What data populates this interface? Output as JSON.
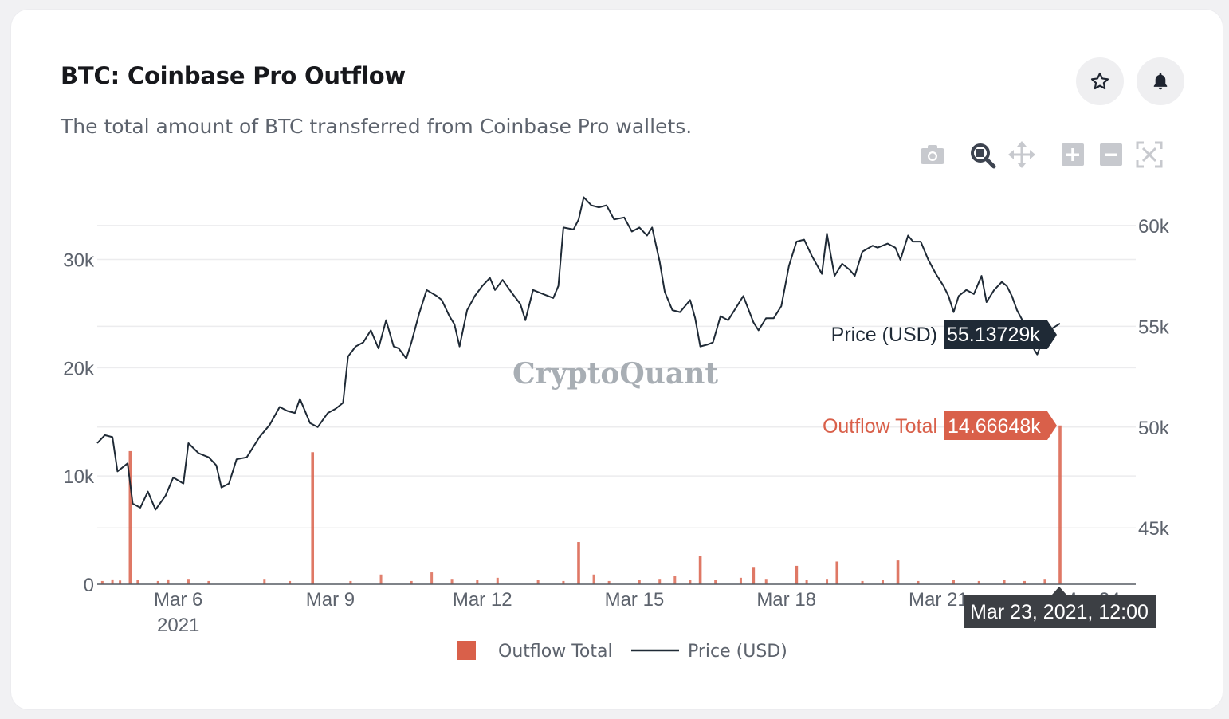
{
  "header": {
    "title": "BTC: Coinbase Pro Outflow",
    "subtitle": "The total amount of BTC transferred from Coinbase Pro wallets."
  },
  "actions": {
    "favorite_icon": "star-icon",
    "alert_icon": "bell-icon"
  },
  "toolbar": {
    "icons": [
      "camera-icon",
      "zoom-icon",
      "pan-icon",
      "zoom-in-icon",
      "zoom-out-icon",
      "autoscale-icon"
    ]
  },
  "colors": {
    "outflow": "#d9604a",
    "price": "#1f2a36",
    "label_price_bg": "#1f2a36",
    "label_outflow_bg": "#d9604a"
  },
  "watermark": "CryptoQuant",
  "hover": {
    "price_label": "Price (USD)",
    "price_value": "55.13729k",
    "outflow_label": "Outflow Total",
    "outflow_value": "14.66648k",
    "date_value": "Mar 23, 2021, 12:00"
  },
  "chart_data": {
    "type": "bar",
    "title": "BTC: Coinbase Pro Outflow",
    "x_ticks": [
      {
        "t": 5.7,
        "label": "Mar 6",
        "sub": "2021"
      },
      {
        "t": 8.7,
        "label": "Mar 9",
        "sub": ""
      },
      {
        "t": 11.7,
        "label": "Mar 12",
        "sub": ""
      },
      {
        "t": 14.7,
        "label": "Mar 15",
        "sub": ""
      },
      {
        "t": 17.7,
        "label": "Mar 18",
        "sub": ""
      },
      {
        "t": 20.7,
        "label": "Mar 21",
        "sub": ""
      },
      {
        "t": 23.7,
        "label": "Mar 24",
        "sub": ""
      }
    ],
    "x_range": [
      4.1,
      23.1
    ],
    "y_left": {
      "ticks": [
        0,
        10000,
        20000,
        30000
      ],
      "tick_labels": [
        "0",
        "10k",
        "20k",
        "30k"
      ],
      "range": [
        0,
        33200
      ]
    },
    "y_right": {
      "ticks": [
        45000,
        50000,
        55000,
        60000
      ],
      "tick_labels": [
        "45k",
        "50k",
        "55k",
        "60k"
      ],
      "range": [
        42200,
        61300
      ]
    },
    "grid": true,
    "legend_placement": "bottom-center",
    "series": [
      {
        "name": "Outflow Total",
        "kind": "bar",
        "axis": "left",
        "spikes": [
          {
            "t": 4.75,
            "v": 12300
          },
          {
            "t": 8.35,
            "v": 12200
          },
          {
            "t": 13.6,
            "v": 3900
          },
          {
            "t": 16.0,
            "v": 2600
          },
          {
            "t": 17.05,
            "v": 1600
          },
          {
            "t": 17.9,
            "v": 1700
          },
          {
            "t": 18.7,
            "v": 2100
          },
          {
            "t": 19.9,
            "v": 2200
          },
          {
            "t": 23.1,
            "v": 14666
          }
        ],
        "baseline_bars": [
          {
            "t": 4.2,
            "v": 300
          },
          {
            "t": 4.4,
            "v": 450
          },
          {
            "t": 4.55,
            "v": 350
          },
          {
            "t": 4.9,
            "v": 400
          },
          {
            "t": 5.3,
            "v": 300
          },
          {
            "t": 5.5,
            "v": 450
          },
          {
            "t": 5.9,
            "v": 500
          },
          {
            "t": 6.3,
            "v": 300
          },
          {
            "t": 7.4,
            "v": 500
          },
          {
            "t": 7.9,
            "v": 300
          },
          {
            "t": 9.1,
            "v": 300
          },
          {
            "t": 9.7,
            "v": 900
          },
          {
            "t": 10.3,
            "v": 300
          },
          {
            "t": 10.7,
            "v": 1100
          },
          {
            "t": 11.1,
            "v": 500
          },
          {
            "t": 11.6,
            "v": 400
          },
          {
            "t": 12.0,
            "v": 600
          },
          {
            "t": 12.8,
            "v": 400
          },
          {
            "t": 13.3,
            "v": 300
          },
          {
            "t": 13.9,
            "v": 900
          },
          {
            "t": 14.2,
            "v": 300
          },
          {
            "t": 14.8,
            "v": 400
          },
          {
            "t": 15.2,
            "v": 500
          },
          {
            "t": 15.5,
            "v": 800
          },
          {
            "t": 15.8,
            "v": 400
          },
          {
            "t": 16.3,
            "v": 400
          },
          {
            "t": 16.8,
            "v": 600
          },
          {
            "t": 17.3,
            "v": 500
          },
          {
            "t": 18.1,
            "v": 400
          },
          {
            "t": 18.5,
            "v": 500
          },
          {
            "t": 19.2,
            "v": 300
          },
          {
            "t": 19.6,
            "v": 400
          },
          {
            "t": 20.3,
            "v": 300
          },
          {
            "t": 21.0,
            "v": 400
          },
          {
            "t": 21.5,
            "v": 300
          },
          {
            "t": 22.0,
            "v": 400
          },
          {
            "t": 22.4,
            "v": 300
          },
          {
            "t": 22.8,
            "v": 500
          }
        ]
      },
      {
        "name": "Price (USD)",
        "kind": "line",
        "axis": "right",
        "points": [
          [
            4.1,
            49200
          ],
          [
            4.25,
            49600
          ],
          [
            4.4,
            49500
          ],
          [
            4.5,
            47800
          ],
          [
            4.7,
            48200
          ],
          [
            4.8,
            46200
          ],
          [
            4.95,
            46000
          ],
          [
            5.1,
            46800
          ],
          [
            5.25,
            45900
          ],
          [
            5.45,
            46600
          ],
          [
            5.6,
            47500
          ],
          [
            5.8,
            47200
          ],
          [
            5.9,
            49200
          ],
          [
            6.1,
            48700
          ],
          [
            6.3,
            48500
          ],
          [
            6.45,
            48100
          ],
          [
            6.55,
            47000
          ],
          [
            6.7,
            47200
          ],
          [
            6.85,
            48400
          ],
          [
            7.05,
            48500
          ],
          [
            7.3,
            49500
          ],
          [
            7.5,
            50100
          ],
          [
            7.7,
            51000
          ],
          [
            7.85,
            50800
          ],
          [
            8.0,
            50700
          ],
          [
            8.1,
            51400
          ],
          [
            8.3,
            50200
          ],
          [
            8.45,
            50000
          ],
          [
            8.65,
            50700
          ],
          [
            8.8,
            50900
          ],
          [
            8.95,
            51200
          ],
          [
            9.05,
            53500
          ],
          [
            9.2,
            54000
          ],
          [
            9.35,
            54200
          ],
          [
            9.5,
            54800
          ],
          [
            9.65,
            53900
          ],
          [
            9.8,
            55300
          ],
          [
            9.95,
            54000
          ],
          [
            10.05,
            53900
          ],
          [
            10.2,
            53400
          ],
          [
            10.3,
            54200
          ],
          [
            10.45,
            55600
          ],
          [
            10.6,
            56800
          ],
          [
            10.8,
            56500
          ],
          [
            10.9,
            56300
          ],
          [
            11.05,
            55500
          ],
          [
            11.15,
            55100
          ],
          [
            11.25,
            54000
          ],
          [
            11.4,
            55800
          ],
          [
            11.55,
            56500
          ],
          [
            11.7,
            57000
          ],
          [
            11.85,
            57400
          ],
          [
            11.95,
            56800
          ],
          [
            12.1,
            57300
          ],
          [
            12.3,
            56600
          ],
          [
            12.45,
            56100
          ],
          [
            12.55,
            55300
          ],
          [
            12.7,
            56800
          ],
          [
            12.9,
            56600
          ],
          [
            13.1,
            56400
          ],
          [
            13.2,
            57000
          ],
          [
            13.3,
            59900
          ],
          [
            13.5,
            59800
          ],
          [
            13.6,
            60300
          ],
          [
            13.7,
            61400
          ],
          [
            13.85,
            61000
          ],
          [
            14.0,
            60900
          ],
          [
            14.15,
            61000
          ],
          [
            14.3,
            60300
          ],
          [
            14.5,
            60400
          ],
          [
            14.65,
            59700
          ],
          [
            14.8,
            59900
          ],
          [
            14.95,
            59500
          ],
          [
            15.05,
            59900
          ],
          [
            15.2,
            58200
          ],
          [
            15.3,
            56700
          ],
          [
            15.45,
            55800
          ],
          [
            15.6,
            55700
          ],
          [
            15.8,
            56300
          ],
          [
            15.9,
            55400
          ],
          [
            16.0,
            54000
          ],
          [
            16.15,
            54100
          ],
          [
            16.25,
            54200
          ],
          [
            16.4,
            55500
          ],
          [
            16.55,
            55300
          ],
          [
            16.7,
            55900
          ],
          [
            16.85,
            56500
          ],
          [
            17.05,
            55200
          ],
          [
            17.15,
            54800
          ],
          [
            17.3,
            55400
          ],
          [
            17.45,
            55400
          ],
          [
            17.6,
            56000
          ],
          [
            17.75,
            58000
          ],
          [
            17.9,
            59200
          ],
          [
            18.05,
            59300
          ],
          [
            18.2,
            58500
          ],
          [
            18.4,
            57600
          ],
          [
            18.5,
            59600
          ],
          [
            18.65,
            57500
          ],
          [
            18.8,
            58100
          ],
          [
            18.95,
            57800
          ],
          [
            19.05,
            57500
          ],
          [
            19.2,
            58700
          ],
          [
            19.4,
            59000
          ],
          [
            19.5,
            58900
          ],
          [
            19.7,
            59100
          ],
          [
            19.85,
            58900
          ],
          [
            19.95,
            58300
          ],
          [
            20.1,
            59500
          ],
          [
            20.2,
            59200
          ],
          [
            20.35,
            59200
          ],
          [
            20.5,
            58300
          ],
          [
            20.65,
            57600
          ],
          [
            20.8,
            57000
          ],
          [
            20.9,
            56500
          ],
          [
            21.0,
            55700
          ],
          [
            21.1,
            56500
          ],
          [
            21.25,
            56800
          ],
          [
            21.4,
            56600
          ],
          [
            21.55,
            57500
          ],
          [
            21.65,
            56200
          ],
          [
            21.8,
            56800
          ],
          [
            21.95,
            57200
          ],
          [
            22.05,
            57000
          ],
          [
            22.15,
            56500
          ],
          [
            22.25,
            55800
          ],
          [
            22.4,
            55100
          ],
          [
            22.5,
            54300
          ],
          [
            22.6,
            53800
          ],
          [
            22.65,
            53600
          ],
          [
            22.8,
            54600
          ],
          [
            22.95,
            54900
          ],
          [
            23.1,
            55137
          ]
        ]
      }
    ]
  },
  "legend": {
    "items": [
      {
        "label": "Outflow Total",
        "kind": "box"
      },
      {
        "label": "Price (USD)",
        "kind": "line"
      }
    ]
  }
}
